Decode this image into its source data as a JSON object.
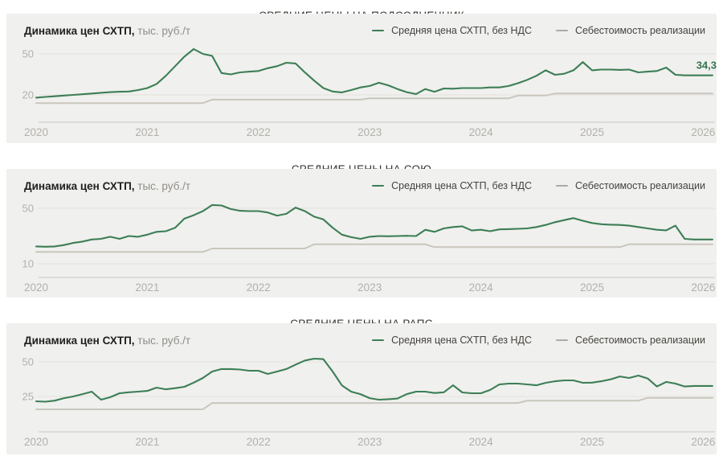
{
  "colors": {
    "price_line": "#3c7e56",
    "cost_line": "#c9c6bd",
    "cost_legend_dash": "#abaaa5",
    "panel_background": "#f0f0ee",
    "gridline": "#e3e2de",
    "axis_line": "#c9c7c2",
    "tick_text": "#b2b0ab",
    "end_label_text": "#35744d"
  },
  "chart_data": [
    {
      "type": "line",
      "title": "СРЕДНИЕ ЦЕНЫ НА ПОДСОЛНЕЧНИК",
      "ylabel_bold": "Динамика цен СХТП,",
      "ylabel_units": "тыс. руб./т",
      "x_start": "2020-01",
      "x_step_months": 1,
      "x_tick_labels": [
        "2020",
        "2021",
        "2022",
        "2023",
        "2024",
        "2025",
        "2026"
      ],
      "y_ticks": [
        50,
        20
      ],
      "grid": "horizontal",
      "legend_position": "top-right",
      "end_value_label": "34,3",
      "series": [
        {
          "name": "Средняя цена СХТП, без НДС",
          "role": "price",
          "values": [
            18,
            18.5,
            19,
            19.5,
            20,
            20.5,
            21,
            21.5,
            22,
            22.3,
            22.5,
            23.5,
            25,
            28,
            34,
            41,
            48,
            53.5,
            50,
            48.5,
            36,
            35,
            36.5,
            37,
            37.5,
            39.5,
            41,
            43.5,
            43,
            36.5,
            30.5,
            25,
            22.5,
            21.8,
            23.5,
            25.5,
            26.5,
            28.9,
            27,
            24.3,
            22,
            20.6,
            24.3,
            22.3,
            24.7,
            24.5,
            25,
            25,
            25,
            25.5,
            25.5,
            26.5,
            28.5,
            31,
            34,
            38,
            34.7,
            35.5,
            38,
            44,
            38,
            38.5,
            38.5,
            38.3,
            38.5,
            36.5,
            37,
            37.5,
            40,
            34.7,
            34.3,
            34.3,
            34.3,
            34.3
          ]
        },
        {
          "name": "Себестоимость реализации",
          "role": "cost",
          "values": [
            14,
            14,
            14,
            14,
            14,
            14,
            14,
            14,
            14,
            14,
            14,
            14,
            14,
            14,
            14,
            14,
            14,
            14,
            14,
            16.5,
            16.5,
            16.5,
            16.5,
            16.5,
            16.5,
            16.5,
            16.5,
            16.5,
            16.5,
            16.5,
            16.5,
            16.5,
            16.5,
            16.5,
            16.5,
            16.5,
            17.5,
            17.5,
            17.5,
            17.5,
            17.5,
            17.5,
            17.5,
            17.5,
            17.5,
            17.5,
            17.5,
            17.5,
            17.5,
            17.5,
            17.5,
            17.5,
            19.5,
            19.5,
            19.5,
            19.5,
            21,
            21,
            21,
            21,
            21,
            21,
            21,
            21,
            21,
            21,
            21,
            21,
            21,
            21,
            21,
            21,
            21,
            21
          ]
        }
      ]
    },
    {
      "type": "line",
      "title": "СРЕДНИЕ ЦЕНЫ НА СОЮ",
      "ylabel_bold": "Динамика цен СХТП,",
      "ylabel_units": "тыс. руб./т",
      "x_start": "2020-01",
      "x_step_months": 1,
      "x_tick_labels": [
        "2020",
        "2021",
        "2022",
        "2023",
        "2024",
        "2025",
        "2026"
      ],
      "y_ticks": [
        50,
        10
      ],
      "grid": "horizontal",
      "legend_position": "top-right",
      "end_value_label": null,
      "series": [
        {
          "name": "Средняя цена СХТП, без НДС",
          "role": "price",
          "values": [
            22.5,
            22.3,
            22.5,
            23.5,
            25,
            26,
            27.5,
            28,
            29.5,
            28,
            30,
            29.5,
            31,
            33,
            33.5,
            36,
            42.5,
            45,
            48,
            52.4,
            52,
            49.5,
            48.2,
            48,
            48,
            47,
            44.7,
            46,
            50.5,
            48,
            44,
            42,
            36,
            31,
            29.2,
            28,
            29.5,
            30,
            29.8,
            30,
            30.2,
            30,
            34.5,
            33,
            35.5,
            36.5,
            37,
            34,
            34.5,
            33.5,
            34.8,
            35,
            35.2,
            35.5,
            36.5,
            38,
            40,
            41.5,
            42.9,
            41,
            39.4,
            38.5,
            38.2,
            38,
            37.5,
            36.5,
            35.5,
            34.5,
            34.1,
            37.5,
            28,
            27.5,
            27.5,
            27.5
          ]
        },
        {
          "name": "Себестоимость реализации",
          "role": "cost",
          "values": [
            18.5,
            18.5,
            18.5,
            18.5,
            18.5,
            18.5,
            18.5,
            18.5,
            18.5,
            18.5,
            18.5,
            18.5,
            18.5,
            18.5,
            18.5,
            18.5,
            18.5,
            18.5,
            18.5,
            21,
            21,
            21,
            21,
            21,
            21,
            21,
            21,
            21,
            21,
            21,
            24,
            24,
            24,
            24,
            24,
            24,
            24,
            24,
            24,
            24,
            24,
            24,
            24,
            22,
            22,
            22,
            22,
            22,
            22,
            22,
            22,
            22,
            22,
            22,
            22,
            22,
            22,
            22,
            22,
            22,
            22,
            22,
            22,
            22,
            24,
            24,
            24,
            24,
            24,
            24,
            24,
            24,
            24,
            24
          ]
        }
      ]
    },
    {
      "type": "line",
      "title": "СРЕДНИЕ ЦЕНЫ НА РАПС",
      "ylabel_bold": "Динамика цен СХТП,",
      "ylabel_units": "тыс. руб./т",
      "x_start": "2020-01",
      "x_step_months": 1,
      "x_tick_labels": [
        "2020",
        "2021",
        "2022",
        "2023",
        "2024",
        "2025",
        "2026"
      ],
      "y_ticks": [
        50,
        25
      ],
      "grid": "horizontal",
      "legend_position": "top-right",
      "end_value_label": null,
      "series": [
        {
          "name": "Средняя цена СХТП, без НДС",
          "role": "price",
          "values": [
            21.5,
            21.2,
            22,
            23.8,
            25,
            26.7,
            28.5,
            22.7,
            24.5,
            27.3,
            28,
            28.5,
            29,
            31.4,
            30.2,
            31,
            32,
            35,
            38.4,
            43,
            44.8,
            44.8,
            44.5,
            43.6,
            43.6,
            41.3,
            43,
            44.8,
            48,
            51,
            52.3,
            52,
            43,
            33,
            28.5,
            26.7,
            23.8,
            22.7,
            23,
            23.5,
            26.7,
            28.5,
            28.5,
            27.5,
            28,
            33.1,
            27.9,
            27.3,
            27.3,
            29.7,
            33.7,
            34.3,
            34.3,
            33.7,
            33.1,
            34.9,
            36,
            36.6,
            36.6,
            34.9,
            35,
            36,
            37.4,
            39.5,
            38.4,
            40.1,
            38,
            32.2,
            35.5,
            34.3,
            32.2,
            32.6,
            32.6,
            32.6
          ]
        },
        {
          "name": "Себестоимость реализации",
          "role": "cost",
          "values": [
            15.7,
            15.7,
            15.7,
            15.7,
            15.7,
            15.7,
            15.7,
            15.7,
            15.7,
            15.7,
            15.7,
            15.7,
            15.7,
            15.7,
            15.7,
            15.7,
            15.7,
            15.7,
            15.7,
            20.3,
            20.3,
            20.3,
            20.3,
            20.3,
            20.3,
            20.3,
            20.3,
            20.3,
            20.3,
            20.3,
            20.3,
            20.3,
            20.3,
            20.3,
            20.3,
            20.3,
            20.3,
            20.3,
            20.3,
            20.3,
            20.3,
            20.3,
            20.3,
            20.3,
            20.3,
            20.3,
            20.3,
            20.3,
            20.3,
            20.3,
            20.3,
            20.3,
            20.3,
            22,
            22,
            22,
            22,
            22,
            22,
            22,
            22,
            22,
            22,
            22,
            22,
            22,
            24,
            24,
            24,
            24,
            24,
            24,
            24,
            24
          ]
        }
      ]
    }
  ]
}
